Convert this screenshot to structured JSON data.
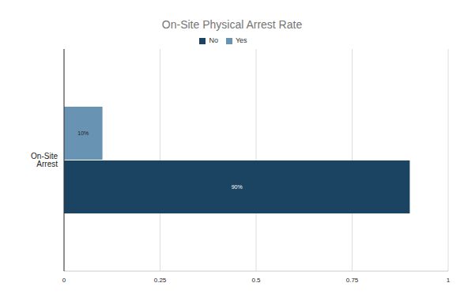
{
  "chart_data": {
    "type": "bar",
    "title": "On-Site Physical Arrest Rate",
    "orientation": "horizontal",
    "categories": [
      "On-Site Arrest"
    ],
    "series": [
      {
        "name": "Yes",
        "color": "#6893b2",
        "values": [
          0.1
        ],
        "value_labels": [
          "10%"
        ]
      },
      {
        "name": "No",
        "color": "#1a4461",
        "values": [
          0.9
        ],
        "value_labels": [
          "90%"
        ]
      }
    ],
    "xlim": [
      0,
      1
    ],
    "xticks": [
      0,
      0.25,
      0.5,
      0.75,
      1
    ],
    "grid": true,
    "legend": "top",
    "data_labels": true
  }
}
